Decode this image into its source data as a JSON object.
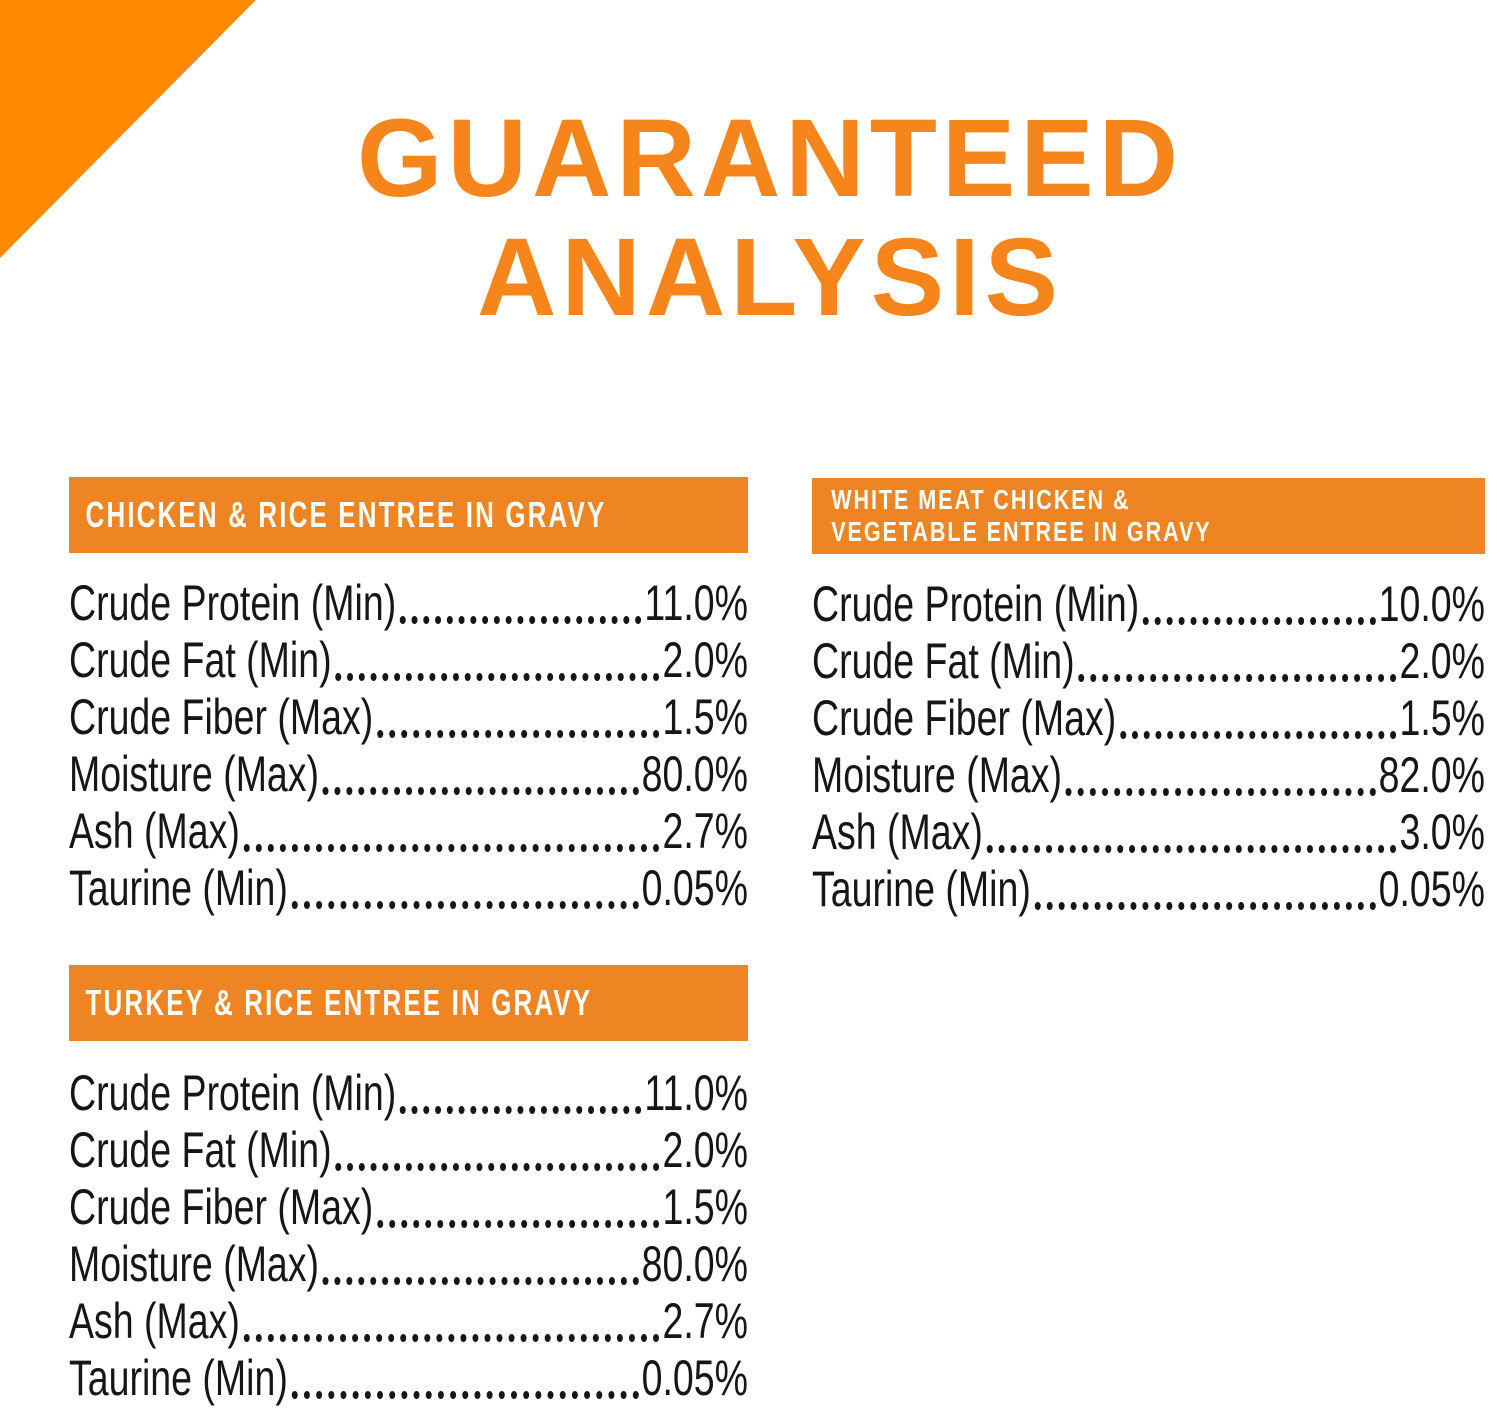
{
  "colors": {
    "canvas_bg": "#FFFFFF",
    "accent_triangle": "#FF8A00",
    "accent_title": "#F6861B",
    "accent_bar": "#EF8522",
    "bar_text": "#FFFFFF",
    "ink": "#161616"
  },
  "title": {
    "line1": "GUARANTEED",
    "line2": "ANALYSIS"
  },
  "sections": [
    {
      "header_lines": [
        "CHICKEN & RICE ENTREE IN GRAVY"
      ],
      "rows": [
        {
          "label": "Crude Protein (Min)",
          "value": "11.0%"
        },
        {
          "label": "Crude Fat (Min)",
          "value": "2.0%"
        },
        {
          "label": "Crude Fiber (Max)",
          "value": "1.5%"
        },
        {
          "label": "Moisture (Max)",
          "value": "80.0%"
        },
        {
          "label": "Ash (Max)",
          "value": "2.7%"
        },
        {
          "label": "Taurine (Min)",
          "value": "0.05%"
        }
      ]
    },
    {
      "header_lines": [
        "WHITE MEAT CHICKEN &",
        "VEGETABLE ENTREE IN GRAVY"
      ],
      "rows": [
        {
          "label": "Crude Protein (Min)",
          "value": "10.0%"
        },
        {
          "label": "Crude Fat (Min)",
          "value": "2.0%"
        },
        {
          "label": "Crude Fiber (Max)",
          "value": "1.5%"
        },
        {
          "label": "Moisture (Max)",
          "value": "82.0%"
        },
        {
          "label": "Ash (Max)",
          "value": "3.0%"
        },
        {
          "label": "Taurine (Min)",
          "value": "0.05%"
        }
      ]
    },
    {
      "header_lines": [
        "TURKEY & RICE ENTREE IN GRAVY"
      ],
      "rows": [
        {
          "label": "Crude Protein (Min)",
          "value": "11.0%"
        },
        {
          "label": "Crude Fat (Min)",
          "value": "2.0%"
        },
        {
          "label": "Crude Fiber (Max)",
          "value": "1.5%"
        },
        {
          "label": "Moisture (Max)",
          "value": "80.0%"
        },
        {
          "label": "Ash (Max)",
          "value": "2.7%"
        },
        {
          "label": "Taurine (Min)",
          "value": "0.05%"
        }
      ]
    }
  ]
}
